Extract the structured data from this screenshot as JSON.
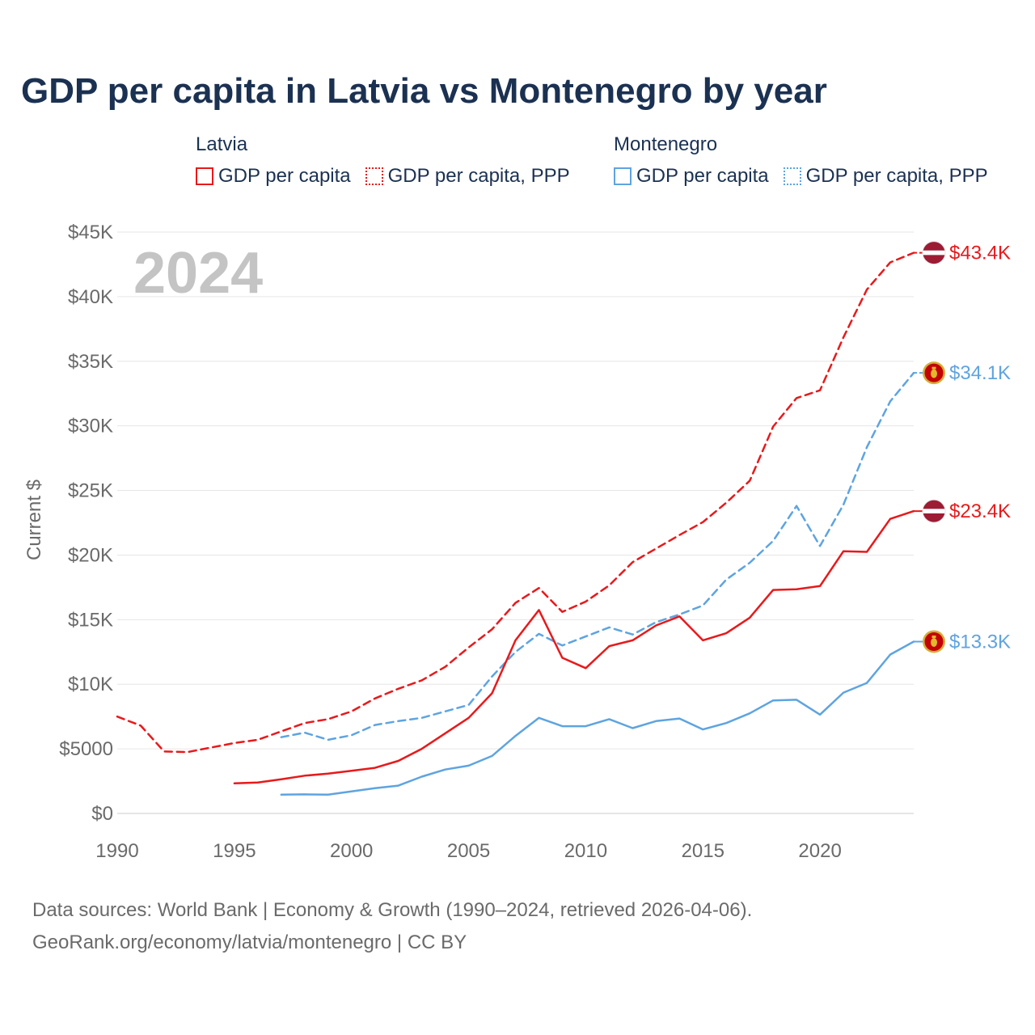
{
  "chart_data": {
    "type": "line",
    "title": "GDP per capita in Latvia vs Montenegro by year",
    "ylabel": "Current $",
    "xlabel": "",
    "xlim": [
      1990,
      2024
    ],
    "ylim": [
      0,
      45000
    ],
    "x_ticks": [
      1990,
      1995,
      2000,
      2005,
      2010,
      2015,
      2020
    ],
    "x_tick_labels": [
      "1990",
      "1995",
      "2000",
      "2005",
      "2010",
      "2015",
      "2020"
    ],
    "y_ticks": [
      0,
      5000,
      10000,
      15000,
      20000,
      25000,
      30000,
      35000,
      40000,
      45000
    ],
    "y_tick_labels": [
      "$0",
      "$5000",
      "$10K",
      "$15K",
      "$20K",
      "$25K",
      "$30K",
      "$35K",
      "$40K",
      "$45K"
    ],
    "year_label": "2024",
    "legend_groups": [
      {
        "title": "Latvia",
        "items": [
          "GDP per capita",
          "GDP per capita, PPP"
        ],
        "color": "#e8191b"
      },
      {
        "title": "Montenegro",
        "items": [
          "GDP per capita",
          "GDP per capita, PPP"
        ],
        "color": "#5ea4e0"
      }
    ],
    "series": [
      {
        "name": "Latvia GDP per capita, PPP",
        "country": "Latvia",
        "dashed": true,
        "color": "#e8191b",
        "x": [
          1990,
          1991,
          1992,
          1993,
          1994,
          1995,
          1996,
          1997,
          1998,
          1999,
          2000,
          2001,
          2002,
          2003,
          2004,
          2005,
          2006,
          2007,
          2008,
          2009,
          2010,
          2011,
          2012,
          2013,
          2014,
          2015,
          2016,
          2017,
          2018,
          2019,
          2020,
          2021,
          2022,
          2023,
          2024
        ],
        "values": [
          7500,
          6800,
          4800,
          4750,
          5100,
          5450,
          5700,
          6350,
          7000,
          7300,
          7900,
          8900,
          9650,
          10300,
          11350,
          12850,
          14250,
          16300,
          17450,
          15600,
          16400,
          17650,
          19450,
          20500,
          21550,
          22550,
          24050,
          25750,
          29950,
          32150,
          32750,
          36850,
          40550,
          42650,
          43400
        ],
        "end_label": "$43.4K"
      },
      {
        "name": "Montenegro GDP per capita, PPP",
        "country": "Montenegro",
        "dashed": true,
        "color": "#5ea4e0",
        "x": [
          1997,
          1998,
          1999,
          2000,
          2001,
          2002,
          2003,
          2004,
          2005,
          2006,
          2007,
          2008,
          2009,
          2010,
          2011,
          2012,
          2013,
          2014,
          2015,
          2016,
          2017,
          2018,
          2019,
          2020,
          2021,
          2022,
          2023,
          2024
        ],
        "values": [
          5900,
          6250,
          5700,
          6050,
          6850,
          7150,
          7400,
          7900,
          8400,
          10600,
          12500,
          13900,
          13000,
          13700,
          14400,
          13850,
          14800,
          15400,
          16100,
          18100,
          19400,
          21100,
          23800,
          20700,
          23900,
          28350,
          31900,
          34100
        ],
        "end_label": "$34.1K"
      },
      {
        "name": "Latvia GDP per capita",
        "country": "Latvia",
        "dashed": false,
        "color": "#e8191b",
        "x": [
          1995,
          1996,
          1997,
          1998,
          1999,
          2000,
          2001,
          2002,
          2003,
          2004,
          2005,
          2006,
          2007,
          2008,
          2009,
          2010,
          2011,
          2012,
          2013,
          2014,
          2015,
          2016,
          2017,
          2018,
          2019,
          2020,
          2021,
          2022,
          2023,
          2024
        ],
        "values": [
          2330,
          2400,
          2650,
          2920,
          3080,
          3300,
          3530,
          4070,
          5000,
          6200,
          7400,
          9300,
          13400,
          15750,
          12050,
          11250,
          12950,
          13400,
          14550,
          15250,
          13400,
          13950,
          15150,
          17300,
          17350,
          17600,
          20300,
          20250,
          22800,
          23400
        ],
        "end_label": "$23.4K"
      },
      {
        "name": "Montenegro GDP per capita",
        "country": "Montenegro",
        "dashed": false,
        "color": "#5ea4e0",
        "x": [
          1997,
          1998,
          1999,
          2000,
          2001,
          2002,
          2003,
          2004,
          2005,
          2006,
          2007,
          2008,
          2009,
          2010,
          2011,
          2012,
          2013,
          2014,
          2015,
          2016,
          2017,
          2018,
          2019,
          2020,
          2021,
          2022,
          2023,
          2024
        ],
        "values": [
          1450,
          1480,
          1450,
          1700,
          1950,
          2150,
          2850,
          3400,
          3700,
          4450,
          6000,
          7400,
          6750,
          6750,
          7300,
          6600,
          7150,
          7350,
          6500,
          7000,
          7750,
          8750,
          8800,
          7650,
          9350,
          10100,
          12300,
          13300
        ],
        "end_label": "$13.3K"
      }
    ]
  },
  "source": {
    "line1": "Data sources: World Bank | Economy & Growth (1990–2024, retrieved 2026-04-06).",
    "line2": "GeoRank.org/economy/latvia/montenegro | CC BY"
  }
}
